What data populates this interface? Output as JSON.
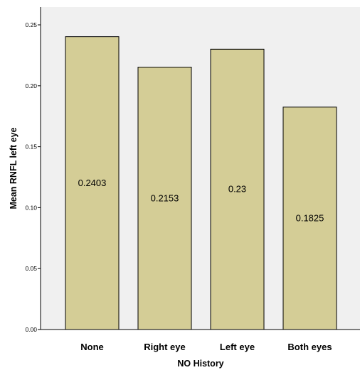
{
  "chart_data": {
    "type": "bar",
    "title": "",
    "xlabel": "NO History",
    "ylabel": "Mean RNFL left eye",
    "categories": [
      "None",
      "Right eye",
      "Left eye",
      "Both eyes"
    ],
    "values": [
      0.2403,
      0.2153,
      0.23,
      0.1825
    ],
    "data_labels": [
      "0.2403",
      "0.2153",
      "0.23",
      "0.1825"
    ],
    "ylim": [
      0,
      0.25
    ],
    "yticks": [
      0.0,
      0.05,
      0.1,
      0.15,
      0.2,
      0.25
    ],
    "ytick_labels": [
      "0.00",
      "0.05",
      "0.10",
      "0.15",
      "0.20",
      "0.25"
    ],
    "grid": false,
    "legend": "none",
    "colors": {
      "bar_fill": "#d4cd96",
      "bar_stroke": "#000000",
      "plot_background": "#f0f0f0",
      "page_background": "#ffffff"
    }
  }
}
